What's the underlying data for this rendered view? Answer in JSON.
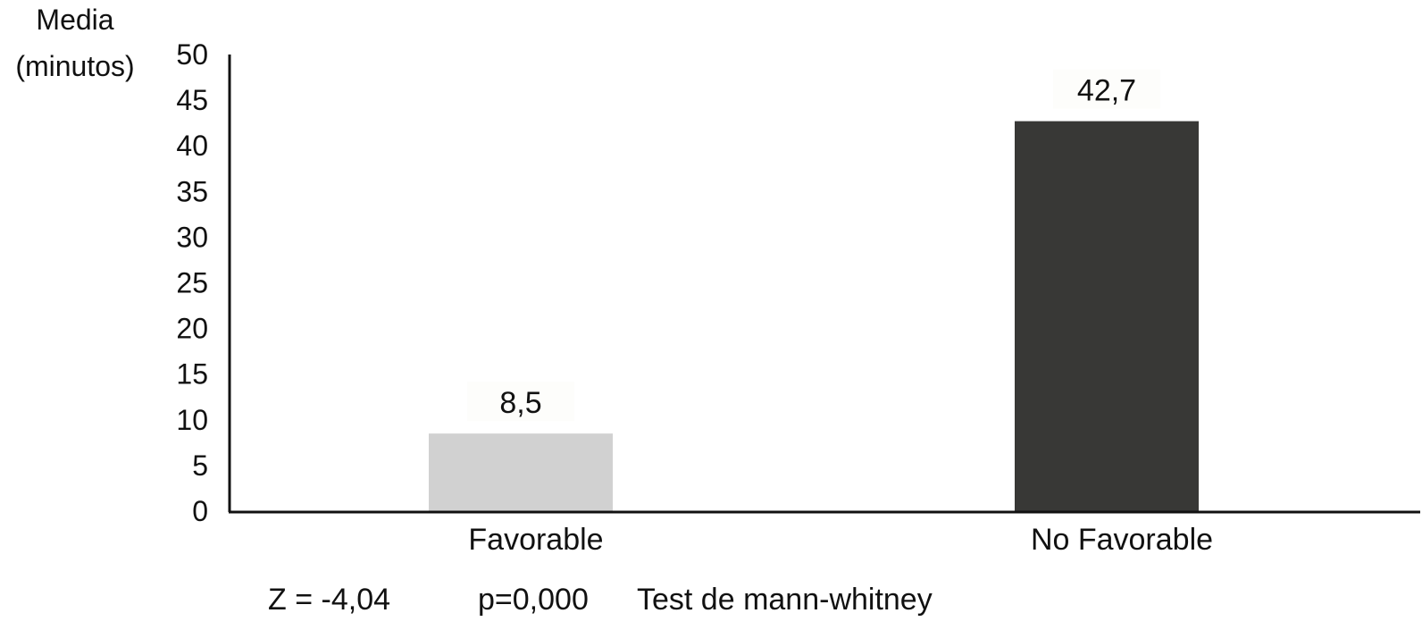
{
  "chart_data": {
    "type": "bar",
    "ylabel_lines": [
      "Media",
      "(minutos)"
    ],
    "xlabel": "",
    "ylim": [
      0,
      50
    ],
    "ytick_step": 5,
    "grid": false,
    "categories": [
      "Favorable",
      "No Favorable"
    ],
    "values": [
      8.5,
      42.7
    ],
    "value_labels": [
      "8,5",
      "42,7"
    ],
    "bar_colors": [
      "#d1d1d1",
      "#383836"
    ]
  },
  "footer": {
    "z_stat": "Z = -4,04",
    "p_value": "p=0,000",
    "test_name": "Test de mann-whitney"
  }
}
